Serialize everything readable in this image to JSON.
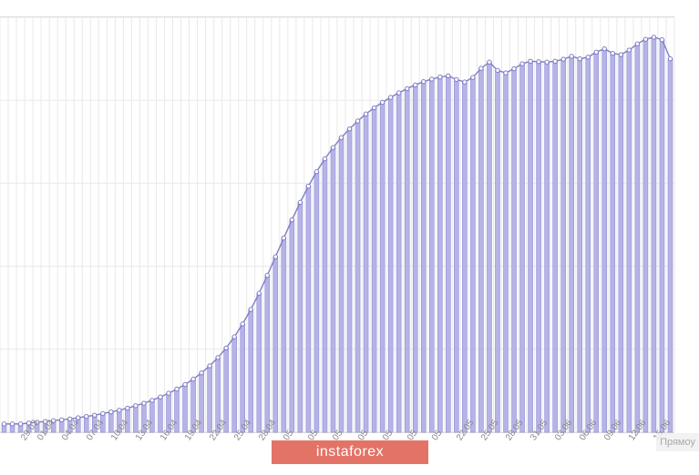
{
  "chart": {
    "type": "area-bar-combo",
    "background_color": "#ffffff",
    "grid_color": "#e9e9e9",
    "axis_border_color": "#d0d0d0",
    "bar_fill": "#b6b4e6",
    "bar_stroke": "#8f8cd9",
    "line_stroke": "#7f7dc5",
    "marker_stroke": "#7f7dc5",
    "marker_fill": "#ffffff",
    "line_width": 1.4,
    "marker_radius": 2.2,
    "bar_width_ratio": 0.55,
    "ylim": [
      0,
      100
    ],
    "ytick_step": 20,
    "xlabel_fontsize": 10,
    "xlabel_color": "#888888",
    "xlabel_rotation_deg": -55,
    "categories": [
      "",
      "",
      "29.03",
      "",
      "01.04",
      "",
      "",
      "04.04",
      "",
      "",
      "07.04",
      "",
      "",
      "10.04",
      "",
      "",
      "13.04",
      "",
      "",
      "16.04",
      "",
      "",
      "19.04",
      "",
      "",
      "22.04",
      "",
      "",
      "25.04",
      "",
      "",
      "28.04",
      "",
      "",
      "05",
      "",
      "",
      "05",
      "",
      "",
      "05",
      "",
      "",
      "05",
      "",
      "",
      "05",
      "",
      "",
      "05",
      "",
      "",
      "05",
      "",
      "",
      "22.05",
      "",
      "",
      "25.05",
      "",
      "",
      "28.05",
      "",
      "",
      "31.05",
      "",
      "",
      "03.06",
      "",
      "",
      "06.06",
      "",
      "",
      "09.06",
      "",
      "",
      "12.06",
      "",
      "",
      "15.06",
      "",
      ""
    ],
    "values": [
      2,
      2,
      2,
      2.2,
      2.4,
      2.6,
      2.8,
      3,
      3.2,
      3.5,
      3.8,
      4.1,
      4.5,
      4.9,
      5.3,
      5.8,
      6.4,
      7,
      7.7,
      8.5,
      9.4,
      10.4,
      11.5,
      12.8,
      14.3,
      16,
      18,
      20.3,
      23,
      26.1,
      29.6,
      33.5,
      37.8,
      42.3,
      46.8,
      51.2,
      55.4,
      59.3,
      62.8,
      65.9,
      68.6,
      71,
      73.1,
      75,
      76.7,
      78.2,
      79.5,
      80.7,
      81.8,
      82.8,
      83.7,
      84.5,
      85.1,
      85.6,
      85.9,
      85,
      84.4,
      85.5,
      87.7,
      89.2,
      87.2,
      86.6,
      87.6,
      88.8,
      89.4,
      89.3,
      89.2,
      89.4,
      89.9,
      90.6,
      90,
      90.4,
      91.6,
      92.4,
      91.3,
      91,
      92.1,
      93.6,
      94.7,
      95.2,
      94.6,
      90
    ]
  },
  "watermark": {
    "text": "instaforex"
  },
  "side_label": {
    "text": "Прямоу"
  }
}
